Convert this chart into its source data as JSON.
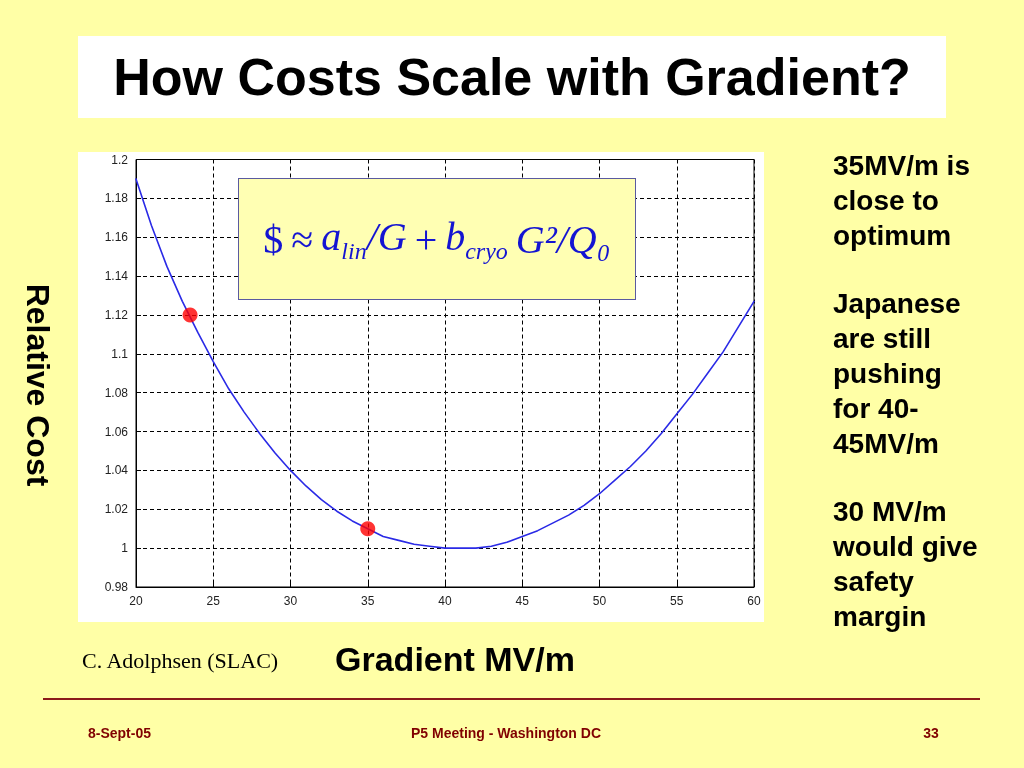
{
  "chart_data": {
    "type": "line",
    "title": "How Costs Scale with Gradient?",
    "xlabel": "Gradient MV/m",
    "ylabel": "Relative Cost",
    "annotations": [
      "$ ≈ a$_{lin}$/G + b$_{cryo}$ G²/Q₀",
      "35MV/m is\nclose to\noptimum",
      "Japanese\nare still\npushing\nfor 40-\n45MV/m",
      "30 MV/m\nwould give\nsafety\nmargin",
      "C. Adolphsen (SLAC)",
      "8-Sept-05",
      "P5 Meeting - Washington DC",
      "33"
    ],
    "x": [
      20,
      21,
      22,
      23,
      24,
      25,
      26,
      27,
      28,
      29,
      30,
      31,
      32,
      33,
      34,
      35,
      36,
      37,
      38,
      39,
      40,
      41,
      42,
      43,
      44,
      45,
      46,
      47,
      48,
      49,
      50,
      51,
      52,
      53,
      54,
      55,
      56,
      57,
      58,
      59,
      60
    ],
    "series": [
      {
        "color": "#2a2ae6",
        "marker": "none",
        "line_style": "solid",
        "values": [
          1.19,
          1.166,
          1.145,
          1.127,
          1.111,
          1.096,
          1.082,
          1.07,
          1.059,
          1.049,
          1.04,
          1.032,
          1.025,
          1.019,
          1.014,
          1.01,
          1.006,
          1.004,
          1.002,
          1.001,
          1,
          1,
          1,
          1.001,
          1.003,
          1.006,
          1.009,
          1.013,
          1.017,
          1.022,
          1.028,
          1.035,
          1.042,
          1.05,
          1.059,
          1.069,
          1.079,
          1.09,
          1.101,
          1.114,
          1.127
        ]
      },
      {
        "type": "scatter",
        "color": "#ff0000",
        "marker": "circle",
        "x": [
          23.5,
          35
        ],
        "values": [
          1.12,
          1.01
        ]
      }
    ],
    "xlim": [
      20,
      60
    ],
    "xticks": [
      20,
      25,
      30,
      35,
      40,
      45,
      50,
      55,
      60
    ],
    "ylim": [
      0.98,
      1.2
    ],
    "yticks": [
      0.98,
      1,
      1.02,
      1.04,
      1.06,
      1.08,
      1.1,
      1.12,
      1.14,
      1.16,
      1.18,
      1.2
    ],
    "grid": true
  }
}
